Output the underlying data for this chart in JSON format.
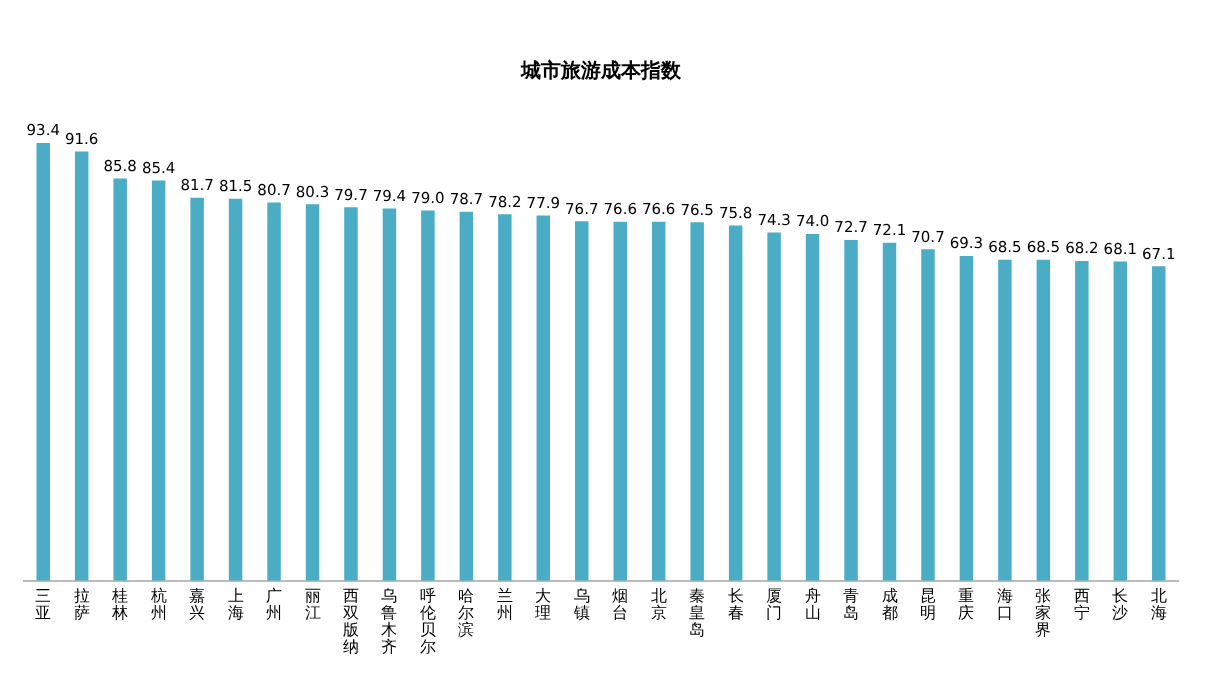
{
  "chart_data": {
    "type": "bar",
    "title": "城市旅游成本指数",
    "categories": [
      "三亚",
      "拉萨",
      "桂林",
      "杭州",
      "嘉兴",
      "上海",
      "广州",
      "丽江",
      "西双版纳",
      "乌鲁木齐",
      "呼伦贝尔",
      "哈尔滨",
      "兰州",
      "大理",
      "乌镇",
      "烟台",
      "北京",
      "秦皇岛",
      "长春",
      "厦门",
      "舟山",
      "青岛",
      "成都",
      "昆明",
      "重庆",
      "海口",
      "张家界",
      "西宁",
      "长沙",
      "北海"
    ],
    "values": [
      93.4,
      91.6,
      85.8,
      85.4,
      81.7,
      81.5,
      80.7,
      80.3,
      79.7,
      79.4,
      79.0,
      78.7,
      78.2,
      77.9,
      76.7,
      76.6,
      76.6,
      76.5,
      75.8,
      74.3,
      74.0,
      72.7,
      72.1,
      70.7,
      69.3,
      68.5,
      68.5,
      68.2,
      68.1,
      67.1
    ],
    "value_labels": [
      "93.4",
      "91.6",
      "85.8",
      "85.4",
      "81.7",
      "81.5",
      "80.7",
      "80.3",
      "79.7",
      "79.4",
      "79.0",
      "78.7",
      "78.2",
      "77.9",
      "76.7",
      "76.6",
      "76.6",
      "76.5",
      "75.8",
      "74.3",
      "74.0",
      "72.7",
      "72.1",
      "70.7",
      "69.3",
      "68.5",
      "68.5",
      "68.2",
      "68.1",
      "67.1"
    ],
    "color": "#4bacc6",
    "grid": false,
    "legend": false
  }
}
